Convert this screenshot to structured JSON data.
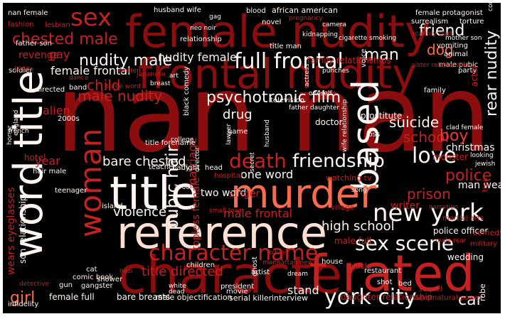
{
  "palette": {
    "background": "#000000",
    "dark_red": "#8b0d0d",
    "red": "#c62121",
    "bright_red": "#ef3b2c",
    "salmon": "#fb6a4a",
    "pink": "#fcbba1",
    "cream": "#fee0d2",
    "white": "#fff5f0"
  },
  "words": [
    {
      "text": "nan nan",
      "tone": "dark_red"
    },
    {
      "text": "female nudity",
      "tone": "dark_red"
    },
    {
      "text": "frontal nudity",
      "tone": "dark_red"
    },
    {
      "text": "character",
      "tone": "dark_red"
    },
    {
      "text": "f rated",
      "tone": "red"
    },
    {
      "text": "reference",
      "tone": "cream"
    },
    {
      "text": "title",
      "tone": "white"
    },
    {
      "text": "word title",
      "tone": "white"
    },
    {
      "text": "based",
      "tone": "white"
    },
    {
      "text": "murder",
      "tone": "salmon"
    },
    {
      "text": "woman",
      "tone": "red"
    },
    {
      "text": "new york",
      "tone": "white"
    },
    {
      "text": "character name",
      "tone": "red"
    },
    {
      "text": "sex scene",
      "tone": "white"
    },
    {
      "text": "york city",
      "tone": "white"
    },
    {
      "text": "full frontal",
      "tone": "white"
    },
    {
      "text": "sex",
      "tone": "red"
    },
    {
      "text": "death",
      "tone": "red"
    },
    {
      "text": "friendship",
      "tone": "white"
    },
    {
      "text": "love",
      "tone": "white"
    },
    {
      "text": "psychotronic film",
      "tone": "white"
    },
    {
      "text": "pubic hair",
      "tone": "white"
    },
    {
      "text": "nudity male",
      "tone": "white"
    },
    {
      "text": "chested male",
      "tone": "red"
    },
    {
      "text": "friend",
      "tone": "white"
    },
    {
      "text": "man",
      "tone": "white"
    },
    {
      "text": "rear nudity",
      "tone": "white"
    },
    {
      "text": "dog",
      "tone": "salmon"
    },
    {
      "text": "male nudity",
      "tone": "red"
    },
    {
      "text": "child",
      "tone": "red"
    },
    {
      "text": "suicide",
      "tone": "white"
    },
    {
      "text": "school",
      "tone": "red"
    },
    {
      "text": "boy",
      "tone": "bright_red"
    },
    {
      "text": "police",
      "tone": "red"
    },
    {
      "text": "prison",
      "tone": "red"
    },
    {
      "text": "girl",
      "tone": "salmon"
    },
    {
      "text": "car",
      "tone": "white"
    },
    {
      "text": "high school",
      "tone": "white"
    },
    {
      "text": "bare chested",
      "tone": "white"
    },
    {
      "text": "title directed",
      "tone": "red"
    },
    {
      "text": "male frontal",
      "tone": "red"
    },
    {
      "text": "violence",
      "tone": "white"
    },
    {
      "text": "one word",
      "tone": "white"
    },
    {
      "text": "two word",
      "tone": "white"
    },
    {
      "text": "marriage",
      "tone": "red"
    },
    {
      "text": "drug",
      "tone": "white"
    },
    {
      "text": "nudity female",
      "tone": "white"
    },
    {
      "text": "female frontal",
      "tone": "white"
    },
    {
      "text": "alien",
      "tone": "red"
    },
    {
      "text": "year",
      "tone": "red"
    },
    {
      "text": "gay",
      "tone": "red"
    },
    {
      "text": "revenge",
      "tone": "red"
    },
    {
      "text": "stand",
      "tone": "white"
    },
    {
      "text": "topless female",
      "tone": "red"
    },
    {
      "text": "singer",
      "tone": "red"
    },
    {
      "text": "hotel",
      "tone": "red"
    },
    {
      "text": "writer",
      "tone": "red"
    },
    {
      "text": "police officer",
      "tone": "white"
    },
    {
      "text": "male full",
      "tone": "red"
    },
    {
      "text": "wedding",
      "tone": "white"
    },
    {
      "text": "man wears",
      "tone": "white"
    },
    {
      "text": "christmas",
      "tone": "white"
    },
    {
      "text": "monster",
      "tone": "red"
    },
    {
      "text": "family relationships",
      "tone": "red"
    },
    {
      "text": "prostitute",
      "tone": "white"
    },
    {
      "text": "doctor",
      "tone": "white"
    },
    {
      "text": "wears eyeglasses",
      "tone": "red"
    },
    {
      "text": "son relationship",
      "tone": "white"
    },
    {
      "text": "female full",
      "tone": "white"
    },
    {
      "text": "bare breasts",
      "tone": "white"
    },
    {
      "text": "male objectification",
      "tone": "white"
    },
    {
      "text": "serial killer",
      "tone": "white"
    },
    {
      "text": "interview",
      "tone": "white"
    },
    {
      "text": "daughter relationship",
      "tone": "red"
    },
    {
      "text": "supernatural power",
      "tone": "red"
    },
    {
      "text": "infidelity",
      "tone": "white"
    },
    {
      "text": "comic book",
      "tone": "white"
    },
    {
      "text": "gangster",
      "tone": "white"
    },
    {
      "text": "gun",
      "tone": "white"
    },
    {
      "text": "shower",
      "tone": "white"
    },
    {
      "text": "cat",
      "tone": "white"
    },
    {
      "text": "nan female",
      "tone": "white"
    },
    {
      "text": "fashion",
      "tone": "red"
    },
    {
      "text": "lesbian",
      "tone": "red"
    },
    {
      "text": "husband wife",
      "tone": "white"
    },
    {
      "text": "blood",
      "tone": "white"
    },
    {
      "text": "african american",
      "tone": "white"
    },
    {
      "text": "female protagonist",
      "tone": "white"
    },
    {
      "text": "surrealism",
      "tone": "white"
    },
    {
      "text": "torture",
      "tone": "white"
    },
    {
      "text": "vomiting",
      "tone": "white"
    },
    {
      "text": "animal",
      "tone": "white"
    },
    {
      "text": "novel",
      "tone": "white"
    },
    {
      "text": "relationship",
      "tone": "white"
    },
    {
      "text": "title man",
      "tone": "white"
    },
    {
      "text": "father son",
      "tone": "white"
    },
    {
      "text": "male pubic",
      "tone": "white"
    },
    {
      "text": "party",
      "tone": "white"
    },
    {
      "text": "soldier",
      "tone": "white"
    },
    {
      "text": "written",
      "tone": "red"
    },
    {
      "text": "japanese",
      "tone": "red"
    },
    {
      "text": "breast",
      "tone": "white"
    },
    {
      "text": "art",
      "tone": "white"
    },
    {
      "text": "voice",
      "tone": "white"
    },
    {
      "text": "actor",
      "tone": "red"
    },
    {
      "text": "family",
      "tone": "white"
    },
    {
      "text": "sister relationship",
      "tone": "red"
    },
    {
      "text": "directed",
      "tone": "white"
    },
    {
      "text": "band",
      "tone": "white"
    },
    {
      "text": "three word",
      "tone": "red"
    },
    {
      "text": "television",
      "tone": "white"
    },
    {
      "text": "father daughter",
      "tone": "white"
    },
    {
      "text": "black comedy",
      "tone": "white"
    },
    {
      "text": "2000s",
      "tone": "white"
    },
    {
      "text": "game",
      "tone": "white"
    },
    {
      "text": "teenager",
      "tone": "white"
    },
    {
      "text": "baby",
      "tone": "white"
    },
    {
      "text": "fight",
      "tone": "white"
    },
    {
      "text": "teacher",
      "tone": "white"
    },
    {
      "text": "title forename",
      "tone": "white"
    },
    {
      "text": "head",
      "tone": "white"
    },
    {
      "text": "hospital",
      "tone": "red"
    },
    {
      "text": "watching tv",
      "tone": "red"
    },
    {
      "text": "hair male",
      "tone": "white"
    },
    {
      "text": "1960s",
      "tone": "white"
    },
    {
      "text": "island",
      "tone": "white"
    },
    {
      "text": "song",
      "tone": "white"
    },
    {
      "text": "narration",
      "tone": "red"
    },
    {
      "text": "martial arts",
      "tone": "red"
    },
    {
      "text": "village",
      "tone": "red"
    },
    {
      "text": "small town",
      "tone": "red"
    },
    {
      "text": "bikini",
      "tone": "red"
    },
    {
      "text": "manhattan new",
      "tone": "red"
    },
    {
      "text": "children",
      "tone": "white"
    },
    {
      "text": "artist",
      "tone": "white"
    },
    {
      "text": "ghost",
      "tone": "white"
    },
    {
      "text": "restaurant",
      "tone": "white"
    },
    {
      "text": "military",
      "tone": "red"
    },
    {
      "text": "comedy",
      "tone": "red"
    },
    {
      "text": "male rear",
      "tone": "red"
    },
    {
      "text": "detective",
      "tone": "red"
    },
    {
      "text": "house",
      "tone": "white"
    },
    {
      "text": "black",
      "tone": "red"
    },
    {
      "text": "shot",
      "tone": "white"
    },
    {
      "text": "sequel",
      "tone": "red"
    },
    {
      "text": "robe",
      "tone": "white"
    },
    {
      "text": "bed",
      "tone": "white"
    },
    {
      "text": "president",
      "tone": "white"
    },
    {
      "text": "movie",
      "tone": "white"
    },
    {
      "text": "white",
      "tone": "white"
    },
    {
      "text": "dead",
      "tone": "white"
    },
    {
      "text": "nazi",
      "tone": "red"
    },
    {
      "text": "dream",
      "tone": "white"
    },
    {
      "text": "kidnapping",
      "tone": "white"
    },
    {
      "text": "neo noir",
      "tone": "white"
    },
    {
      "text": "pregnancy",
      "tone": "red"
    },
    {
      "text": "scantily clad",
      "tone": "red"
    },
    {
      "text": "mother son",
      "tone": "white"
    },
    {
      "text": "cigarette smoking",
      "tone": "white"
    },
    {
      "text": "camera",
      "tone": "white"
    },
    {
      "text": "train",
      "tone": "red"
    },
    {
      "text": "looking",
      "tone": "white"
    },
    {
      "text": "jewish",
      "tone": "white"
    },
    {
      "text": "clad female",
      "tone": "white"
    },
    {
      "text": "loss",
      "tone": "white"
    },
    {
      "text": "husband",
      "tone": "white"
    },
    {
      "text": "wife relationship",
      "tone": "white"
    },
    {
      "text": "secret",
      "tone": "white"
    },
    {
      "text": "england",
      "tone": "white"
    },
    {
      "text": "french",
      "tone": "white"
    },
    {
      "text": "horror",
      "tone": "white"
    },
    {
      "text": "gag",
      "tone": "white"
    },
    {
      "text": "actress",
      "tone": "white"
    },
    {
      "text": "oneself",
      "tone": "white"
    },
    {
      "text": "punches",
      "tone": "white"
    },
    {
      "text": "college",
      "tone": "white"
    },
    {
      "text": "lawyer",
      "tone": "white"
    },
    {
      "text": "director",
      "tone": "white"
    },
    {
      "text": "1990s",
      "tone": "red"
    },
    {
      "text": "dance",
      "tone": "red"
    },
    {
      "text": "complex",
      "tone": "white"
    }
  ]
}
